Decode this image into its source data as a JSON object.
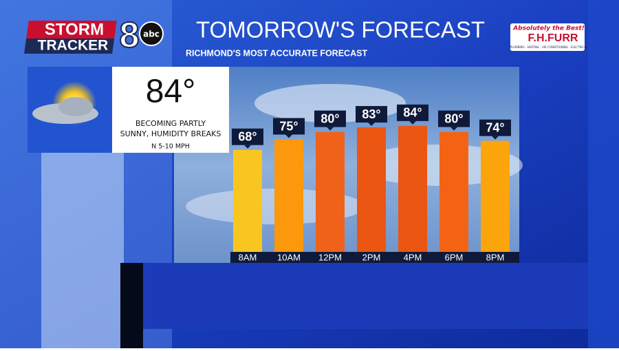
{
  "logo": {
    "storm": "STORM",
    "tracker": "TRACKER",
    "channel": "8",
    "network": "abc"
  },
  "sponsor": {
    "tagline": "Absolutely the Best!",
    "name": "F.H.FURR",
    "services": "PLUMBING · HEATING · AIR CONDITIONING · ELECTRICAL"
  },
  "summary": {
    "temperature": "84°",
    "description": [
      "BECOMING PARTLY",
      "SUNNY, HUMIDITY BREAKS"
    ],
    "wind": "N 5-10 MPH"
  },
  "chart_data": {
    "type": "bar",
    "title": "TOMORROW'S FORECAST",
    "subtitle": "RICHMOND'S MOST ACCURATE FORECAST",
    "categories": [
      "8AM",
      "10AM",
      "12PM",
      "2PM",
      "4PM",
      "6PM",
      "8PM"
    ],
    "values": [
      68,
      75,
      80,
      83,
      84,
      80,
      74
    ],
    "value_labels": [
      "68°",
      "75°",
      "80°",
      "83°",
      "84°",
      "80°",
      "74°"
    ],
    "colors": [
      "#f9c61f",
      "#fb980c",
      "#f0621a",
      "#ea5612",
      "#ea5612",
      "#f46313",
      "#fca40b"
    ]
  }
}
